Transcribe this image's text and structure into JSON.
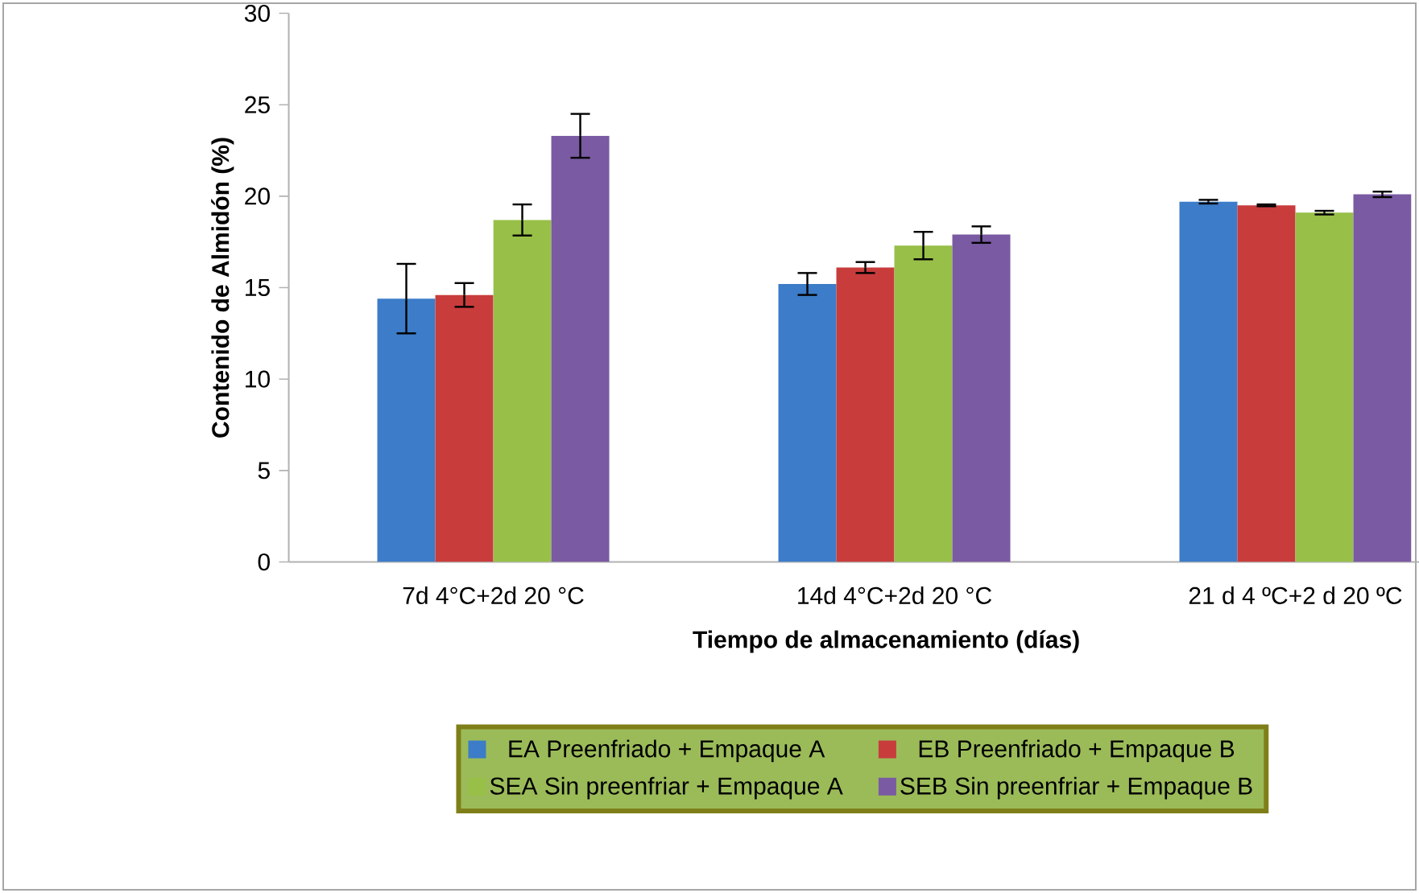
{
  "chart_data": {
    "type": "bar",
    "xlabel": "Tiempo de almacenamiento (días)",
    "ylabel": "Contenido de Almidón (%)",
    "categories": [
      "7d 4°C+2d 20 °C",
      "14d 4°C+2d 20 °C",
      "21 d 4 ºC+2 d 20 ºC"
    ],
    "series": [
      {
        "name": "EA Preenfriado + Empaque A",
        "color": "#3c7cc8",
        "values": [
          14.4,
          15.2,
          19.7
        ],
        "errors": [
          1.9,
          0.6,
          0.1
        ]
      },
      {
        "name": "EB Preenfriado + Empaque B",
        "color": "#c83c3c",
        "values": [
          14.6,
          16.1,
          19.5
        ],
        "errors": [
          0.65,
          0.3,
          0.05
        ]
      },
      {
        "name": "SEA Sin preenfriar + Empaque A",
        "color": "#98bf48",
        "values": [
          18.7,
          17.3,
          19.1
        ],
        "errors": [
          0.85,
          0.75,
          0.1
        ]
      },
      {
        "name": "SEB Sin preenfriar + Empaque B",
        "color": "#7a5aa2",
        "values": [
          23.3,
          17.9,
          20.1
        ],
        "errors": [
          1.2,
          0.45,
          0.15
        ]
      }
    ],
    "ylim": [
      0,
      30
    ],
    "yticks": [
      0,
      5,
      10,
      15,
      20,
      25,
      30
    ],
    "grid": false,
    "legend": "bottom"
  }
}
